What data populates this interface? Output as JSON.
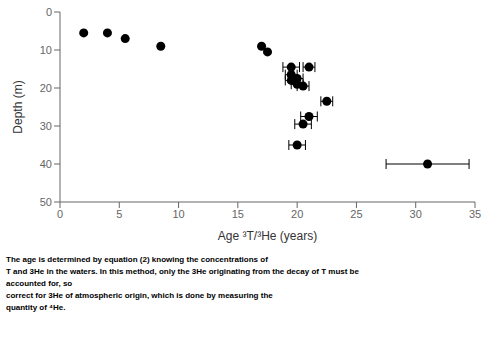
{
  "chart_data": {
    "type": "scatter",
    "x_label": "Age ³T/³He (years)",
    "y_label": "Depth (m)",
    "annotations": [
      "The age is determined by equation (2) knowing the concentrations of",
      "T and 3He in the waters. In this method, only the 3He originating from the decay of T must be",
      "accounted for, so",
      "correct for 3He of atmospheric origin, which is done by measuring the",
      "quantity of ⁴He."
    ],
    "x": [
      2.0,
      4.0,
      5.5,
      8.5,
      17.0,
      17.5,
      19.5,
      21.0,
      19.5,
      20.0,
      19.5,
      20.0,
      20.5,
      22.5,
      21.0,
      20.5,
      20.0,
      31.0
    ],
    "values": [
      5.5,
      5.5,
      7.0,
      9.0,
      9.0,
      10.5,
      14.5,
      14.5,
      16.5,
      17.5,
      18.0,
      19.0,
      19.5,
      23.5,
      27.5,
      29.5,
      35.0,
      40.0
    ],
    "xerr": [
      0,
      0,
      0,
      0,
      0,
      0,
      0.7,
      0.5,
      0.5,
      0.5,
      0.5,
      0.5,
      0.5,
      0.5,
      0.7,
      0.7,
      0.7,
      3.5
    ],
    "color": "black",
    "marker": "circle",
    "xlim": [
      0,
      35
    ],
    "ylim": [
      50,
      0
    ],
    "xticks": [
      0,
      5,
      10,
      15,
      20,
      25,
      30,
      35
    ],
    "yticks": [
      0,
      10,
      20,
      30,
      40,
      50
    ],
    "grid": false
  }
}
